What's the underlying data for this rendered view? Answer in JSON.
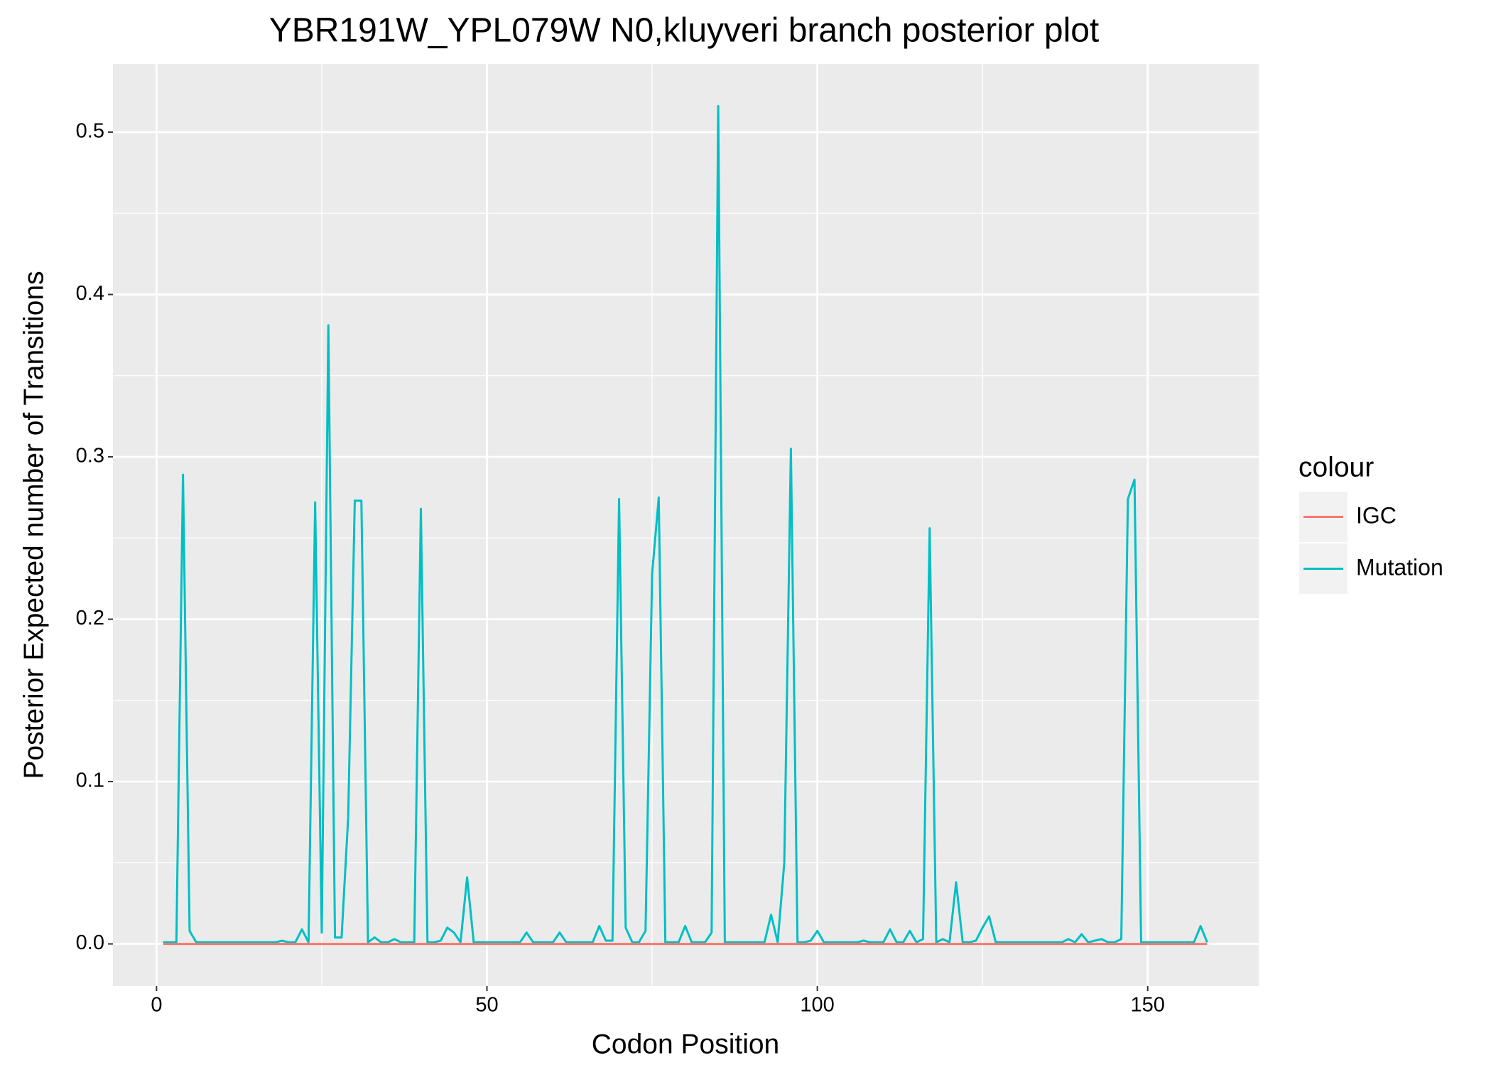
{
  "chart_data": {
    "type": "line",
    "title": "YBR191W_YPL079W N0,kluyveri branch posterior plot",
    "x_label": "Codon Position",
    "y_label": "Posterior Expected number of Transitions",
    "legend_title": "colour",
    "x": [
      1,
      2,
      3,
      4,
      5,
      6,
      7,
      8,
      9,
      10,
      11,
      12,
      13,
      14,
      15,
      16,
      17,
      18,
      19,
      20,
      21,
      22,
      23,
      24,
      25,
      26,
      27,
      28,
      29,
      30,
      31,
      32,
      33,
      34,
      35,
      36,
      37,
      38,
      39,
      40,
      41,
      42,
      43,
      44,
      45,
      46,
      47,
      48,
      49,
      50,
      51,
      52,
      53,
      54,
      55,
      56,
      57,
      58,
      59,
      60,
      61,
      62,
      63,
      64,
      65,
      66,
      67,
      68,
      69,
      70,
      71,
      72,
      73,
      74,
      75,
      76,
      77,
      78,
      79,
      80,
      81,
      82,
      83,
      84,
      85,
      86,
      87,
      88,
      89,
      90,
      91,
      92,
      93,
      94,
      95,
      96,
      97,
      98,
      99,
      100,
      101,
      102,
      103,
      104,
      105,
      106,
      107,
      108,
      109,
      110,
      111,
      112,
      113,
      114,
      115,
      116,
      117,
      118,
      119,
      120,
      121,
      122,
      123,
      124,
      125,
      126,
      127,
      128,
      129,
      130,
      131,
      132,
      133,
      134,
      135,
      136,
      137,
      138,
      139,
      140,
      141,
      142,
      143,
      144,
      145,
      146,
      147,
      148,
      149,
      150,
      151,
      152,
      153,
      154,
      155,
      156,
      157,
      158,
      159
    ],
    "series": [
      {
        "name": "IGC",
        "color": "#F8766D",
        "values": [
          0,
          0,
          0,
          0,
          0,
          0,
          0,
          0,
          0,
          0,
          0,
          0,
          0,
          0,
          0,
          0,
          0,
          0,
          0,
          0,
          0,
          0,
          0,
          0,
          0,
          0,
          0,
          0,
          0,
          0,
          0,
          0,
          0,
          0,
          0,
          0,
          0,
          0,
          0,
          0,
          0,
          0,
          0,
          0,
          0,
          0,
          0,
          0,
          0,
          0,
          0,
          0,
          0,
          0,
          0,
          0,
          0,
          0,
          0,
          0,
          0,
          0,
          0,
          0,
          0,
          0,
          0,
          0,
          0,
          0,
          0,
          0,
          0,
          0,
          0,
          0,
          0,
          0,
          0,
          0,
          0,
          0,
          0,
          0,
          0,
          0,
          0,
          0,
          0,
          0,
          0,
          0,
          0,
          0,
          0,
          0,
          0,
          0,
          0,
          0,
          0,
          0,
          0,
          0,
          0,
          0,
          0,
          0,
          0,
          0,
          0,
          0,
          0,
          0,
          0,
          0,
          0,
          0,
          0,
          0,
          0,
          0,
          0,
          0,
          0,
          0,
          0,
          0,
          0,
          0,
          0,
          0,
          0,
          0,
          0,
          0,
          0,
          0,
          0,
          0,
          0,
          0,
          0,
          0,
          0,
          0,
          0,
          0,
          0,
          0,
          0,
          0,
          0,
          0,
          0,
          0,
          0,
          0,
          0
        ]
      },
      {
        "name": "Mutation",
        "color": "#00BFC4",
        "values": [
          0.001,
          0.001,
          0.001,
          0.289,
          0.008,
          0.001,
          0.001,
          0.001,
          0.001,
          0.001,
          0.001,
          0.001,
          0.001,
          0.001,
          0.001,
          0.001,
          0.001,
          0.001,
          0.002,
          0.001,
          0.001,
          0.009,
          0.001,
          0.272,
          0.007,
          0.381,
          0.004,
          0.004,
          0.078,
          0.273,
          0.273,
          0.001,
          0.004,
          0.001,
          0.001,
          0.003,
          0.001,
          0.001,
          0.001,
          0.268,
          0.001,
          0.001,
          0.002,
          0.01,
          0.007,
          0.001,
          0.041,
          0.001,
          0.001,
          0.001,
          0.001,
          0.001,
          0.001,
          0.001,
          0.001,
          0.007,
          0.001,
          0.001,
          0.001,
          0.001,
          0.007,
          0.001,
          0.001,
          0.001,
          0.001,
          0.001,
          0.011,
          0.002,
          0.002,
          0.274,
          0.01,
          0.001,
          0.001,
          0.008,
          0.228,
          0.275,
          0.001,
          0.001,
          0.001,
          0.011,
          0.001,
          0.001,
          0.001,
          0.007,
          0.516,
          0.001,
          0.001,
          0.001,
          0.001,
          0.001,
          0.001,
          0.001,
          0.018,
          0.001,
          0.05,
          0.305,
          0.001,
          0.001,
          0.002,
          0.008,
          0.001,
          0.001,
          0.001,
          0.001,
          0.001,
          0.001,
          0.002,
          0.001,
          0.001,
          0.001,
          0.009,
          0.001,
          0.001,
          0.008,
          0.001,
          0.003,
          0.256,
          0.001,
          0.003,
          0.001,
          0.038,
          0.001,
          0.001,
          0.002,
          0.01,
          0.017,
          0.001,
          0.001,
          0.001,
          0.001,
          0.001,
          0.001,
          0.001,
          0.001,
          0.001,
          0.001,
          0.001,
          0.003,
          0.001,
          0.006,
          0.001,
          0.002,
          0.003,
          0.001,
          0.001,
          0.003,
          0.274,
          0.286,
          0.001,
          0.001,
          0.001,
          0.001,
          0.001,
          0.001,
          0.001,
          0.001,
          0.001,
          0.011,
          0.001
        ]
      }
    ],
    "xlim": [
      -6.6,
      166.8
    ],
    "xticks": [
      0,
      50,
      100,
      150
    ],
    "ylim": [
      -0.026,
      0.542
    ],
    "yticks": [
      0.0,
      0.1,
      0.2,
      0.3,
      0.4,
      0.5
    ],
    "grid": true,
    "legend_position": "right"
  }
}
